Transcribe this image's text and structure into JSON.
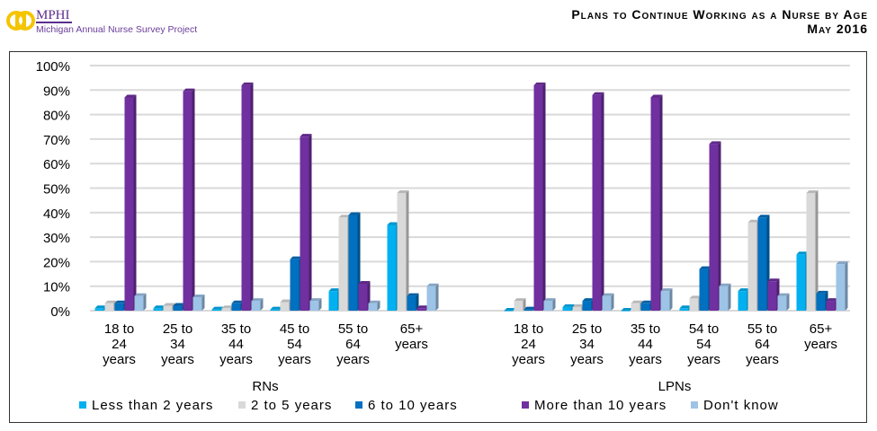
{
  "header": {
    "org": "MPHI",
    "project": "Michigan Annual Nurse Survey Project",
    "title_line1": "Plans to Continue Working as a Nurse by Age",
    "title_line2": "May 2016"
  },
  "chart_data": {
    "type": "bar",
    "title": "Plans to Continue Working as a Nurse by Age",
    "ylim": [
      0,
      100
    ],
    "yticks": [
      "0%",
      "10%",
      "20%",
      "30%",
      "40%",
      "50%",
      "60%",
      "70%",
      "80%",
      "90%",
      "100%"
    ],
    "grid": true,
    "legend_placement": "bottom",
    "groups": [
      {
        "name": "RNs",
        "categories": [
          [
            "18 to",
            "24",
            "years"
          ],
          [
            "25 to",
            "34",
            "years"
          ],
          [
            "35 to",
            "44",
            "years"
          ],
          [
            "45 to",
            "54",
            "years"
          ],
          [
            "55 to",
            "64",
            "years"
          ],
          [
            "65+",
            "years"
          ]
        ],
        "series": [
          {
            "name": "Less than 2 years",
            "values": [
              1,
              1,
              0.5,
              0.5,
              8,
              35
            ]
          },
          {
            "name": "2 to 5 years",
            "values": [
              3,
              2,
              1,
              3.5,
              38,
              48
            ]
          },
          {
            "name": "6 to 10 years",
            "values": [
              3,
              2,
              3,
              21,
              39,
              6
            ]
          },
          {
            "name": "More than 10 years",
            "values": [
              87,
              89.5,
              92,
              71,
              11,
              1
            ]
          },
          {
            "name": "Don't know",
            "values": [
              6,
              5.5,
              4,
              4,
              3,
              10
            ]
          }
        ]
      },
      {
        "name": "LPNs",
        "categories": [
          [
            "18 to",
            "24",
            "years"
          ],
          [
            "25 to",
            "34",
            "years"
          ],
          [
            "35 to",
            "44",
            "years"
          ],
          [
            "54 to",
            "54",
            "years"
          ],
          [
            "55 to",
            "64",
            "years"
          ],
          [
            "65+",
            "years"
          ]
        ],
        "series": [
          {
            "name": "Less than 2 years",
            "values": [
              0,
              1.5,
              0,
              1,
              8,
              23
            ]
          },
          {
            "name": "2 to 5 years",
            "values": [
              4,
              1.5,
              3,
              5,
              36,
              48
            ]
          },
          {
            "name": "6 to 10 years",
            "values": [
              0.5,
              4,
              3,
              17,
              38,
              7
            ]
          },
          {
            "name": "More than 10 years",
            "values": [
              92,
              88,
              87,
              68,
              12,
              4
            ]
          },
          {
            "name": "Don't know",
            "values": [
              4,
              6,
              8,
              10,
              6,
              19
            ]
          }
        ]
      }
    ],
    "colors": [
      "#00b0f0",
      "#d9d9d9",
      "#0070c0",
      "#7030a0",
      "#9dc3e6"
    ]
  }
}
